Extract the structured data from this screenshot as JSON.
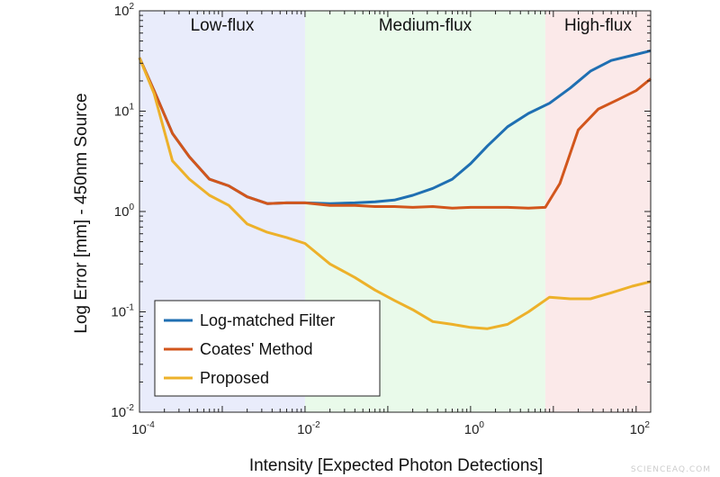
{
  "chart_data": {
    "type": "line",
    "title": "",
    "xlabel": "Intensity [Expected Photon Detections]",
    "ylabel": "Log Error [mm] - 450nm Source",
    "xscale": "log",
    "yscale": "log",
    "xlim": [
      0.0001,
      150
    ],
    "ylim": [
      0.01,
      100
    ],
    "grid": false,
    "legend_position": "bottom-left",
    "x_ticks": [
      {
        "base": "10",
        "exp": "-4",
        "value": 0.0001
      },
      {
        "base": "10",
        "exp": "-2",
        "value": 0.01
      },
      {
        "base": "10",
        "exp": "0",
        "value": 1
      },
      {
        "base": "10",
        "exp": "2",
        "value": 100
      }
    ],
    "y_ticks": [
      {
        "base": "10",
        "exp": "-2",
        "value": 0.01
      },
      {
        "base": "10",
        "exp": "-1",
        "value": 0.1
      },
      {
        "base": "10",
        "exp": "0",
        "value": 1
      },
      {
        "base": "10",
        "exp": "1",
        "value": 10
      },
      {
        "base": "10",
        "exp": "2",
        "value": 100
      }
    ],
    "regions": [
      {
        "label": "Low-flux",
        "x_start": 0.0001,
        "x_end": 0.01,
        "color": "#e9ecfb"
      },
      {
        "label": "Medium-flux",
        "x_start": 0.01,
        "x_end": 8,
        "color": "#e9faea"
      },
      {
        "label": "High-flux",
        "x_start": 8,
        "x_end": 150,
        "color": "#fbe9e9"
      }
    ],
    "series": [
      {
        "name": "Log-matched Filter",
        "color": "#1f6fb2",
        "x": [
          0.0001,
          0.00015,
          0.00025,
          0.0004,
          0.0007,
          0.0012,
          0.002,
          0.0035,
          0.006,
          0.01,
          0.02,
          0.04,
          0.07,
          0.12,
          0.2,
          0.35,
          0.6,
          1,
          1.6,
          2.8,
          5,
          9,
          16,
          28,
          50,
          90,
          150
        ],
        "y": [
          34,
          16,
          6,
          3.5,
          2.1,
          1.8,
          1.4,
          1.2,
          1.22,
          1.22,
          1.2,
          1.22,
          1.25,
          1.3,
          1.45,
          1.7,
          2.1,
          3,
          4.5,
          7,
          9.5,
          12,
          17,
          25,
          32,
          36,
          40
        ]
      },
      {
        "name": "Coates' Method",
        "color": "#d2561c",
        "x": [
          0.0001,
          0.00015,
          0.00025,
          0.0004,
          0.0007,
          0.0012,
          0.002,
          0.0035,
          0.006,
          0.01,
          0.02,
          0.04,
          0.07,
          0.12,
          0.2,
          0.35,
          0.6,
          1,
          1.6,
          2.8,
          5,
          8,
          12,
          20,
          35,
          60,
          100,
          150
        ],
        "y": [
          34,
          16,
          6,
          3.5,
          2.1,
          1.8,
          1.4,
          1.2,
          1.22,
          1.22,
          1.15,
          1.15,
          1.12,
          1.12,
          1.1,
          1.12,
          1.08,
          1.1,
          1.1,
          1.1,
          1.08,
          1.1,
          1.9,
          6.5,
          10.5,
          13,
          16,
          21
        ]
      },
      {
        "name": "Proposed",
        "color": "#edb12a",
        "x": [
          0.0001,
          0.00015,
          0.00025,
          0.0004,
          0.0007,
          0.0012,
          0.002,
          0.0035,
          0.006,
          0.01,
          0.02,
          0.04,
          0.07,
          0.12,
          0.2,
          0.35,
          0.6,
          1,
          1.6,
          2.8,
          5,
          9,
          16,
          28,
          50,
          90,
          150
        ],
        "y": [
          34,
          15,
          3.2,
          2.1,
          1.45,
          1.15,
          0.75,
          0.62,
          0.55,
          0.48,
          0.3,
          0.22,
          0.165,
          0.13,
          0.105,
          0.08,
          0.075,
          0.07,
          0.068,
          0.075,
          0.1,
          0.14,
          0.135,
          0.135,
          0.155,
          0.18,
          0.2
        ]
      }
    ]
  },
  "watermark": "SCIENCEAQ.COM"
}
